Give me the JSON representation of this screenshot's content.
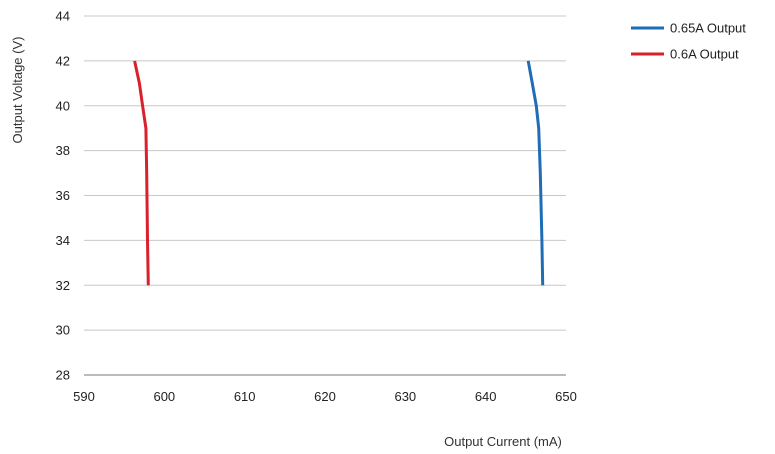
{
  "chart_data": {
    "type": "line",
    "xlabel": "Output Current (mA)",
    "ylabel": "Output Voltage (V)",
    "xlim": [
      590,
      650
    ],
    "ylim": [
      28,
      44
    ],
    "xticks": [
      590,
      600,
      610,
      620,
      630,
      640,
      650
    ],
    "yticks": [
      28,
      30,
      32,
      34,
      36,
      38,
      40,
      42,
      44
    ],
    "grid": "horizontal",
    "legend_position": "top-right",
    "series": [
      {
        "name": "0.65A Output",
        "color": "#1f6db5",
        "x": [
          645.3,
          645.8,
          646.3,
          646.6,
          646.8,
          647.0,
          647.1
        ],
        "y": [
          42,
          41,
          40,
          39,
          37,
          34,
          32
        ]
      },
      {
        "name": "0.6A Output",
        "color": "#d9202c",
        "x": [
          596.3,
          596.9,
          597.3,
          597.7,
          597.8,
          597.9,
          598.0
        ],
        "y": [
          42,
          41,
          40,
          39,
          37,
          34,
          32
        ]
      }
    ]
  }
}
